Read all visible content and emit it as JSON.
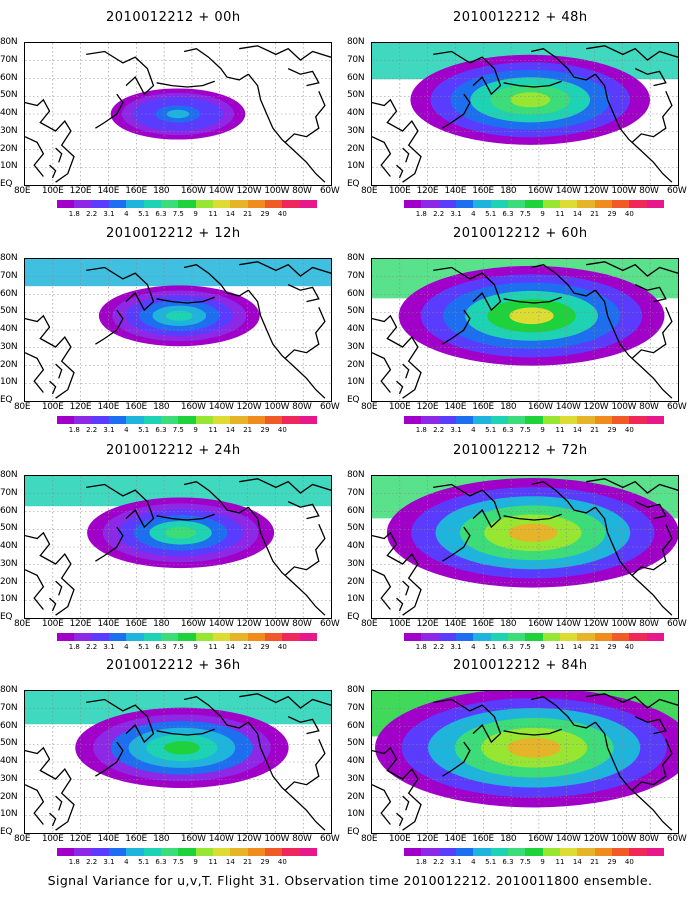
{
  "caption": "Signal Variance for u,v,T. Flight 31. Observation time 2010012212. 2010011800 ensemble.",
  "lat_labels": [
    "80N",
    "70N",
    "60N",
    "50N",
    "40N",
    "30N",
    "20N",
    "10N",
    "EQ"
  ],
  "lon_labels": [
    "80E",
    "100E",
    "120E",
    "140E",
    "160E",
    "180",
    "160W",
    "140W",
    "120W",
    "100W",
    "80W",
    "60W"
  ],
  "colorbar": {
    "labels": [
      "1.8",
      "2.2",
      "3.1",
      "4",
      "5.1",
      "6.3",
      "7.5",
      "9",
      "11",
      "14",
      "21",
      "29",
      "40"
    ],
    "colors": [
      "#a000c8",
      "#8c28e6",
      "#5a3cff",
      "#1e6ef0",
      "#1eb4dc",
      "#1ed2b4",
      "#3cdc78",
      "#1ed23c",
      "#96e632",
      "#dcdc32",
      "#e6b428",
      "#f08c1e",
      "#f05a28",
      "#f0285a",
      "#e6188c"
    ]
  },
  "panels": [
    {
      "id": "p00",
      "title": "2010012212 + 00h",
      "lead": 0
    },
    {
      "id": "p12",
      "title": "2010012212 + 12h",
      "lead": 12
    },
    {
      "id": "p24",
      "title": "2010012212 + 24h",
      "lead": 24
    },
    {
      "id": "p36",
      "title": "2010012212 + 36h",
      "lead": 36
    },
    {
      "id": "p48",
      "title": "2010012212 + 48h",
      "lead": 48
    },
    {
      "id": "p60",
      "title": "2010012212 + 60h",
      "lead": 60
    },
    {
      "id": "p72",
      "title": "2010012212 + 72h",
      "lead": 72
    },
    {
      "id": "p84",
      "title": "2010012212 + 84h",
      "lead": 84
    }
  ]
}
